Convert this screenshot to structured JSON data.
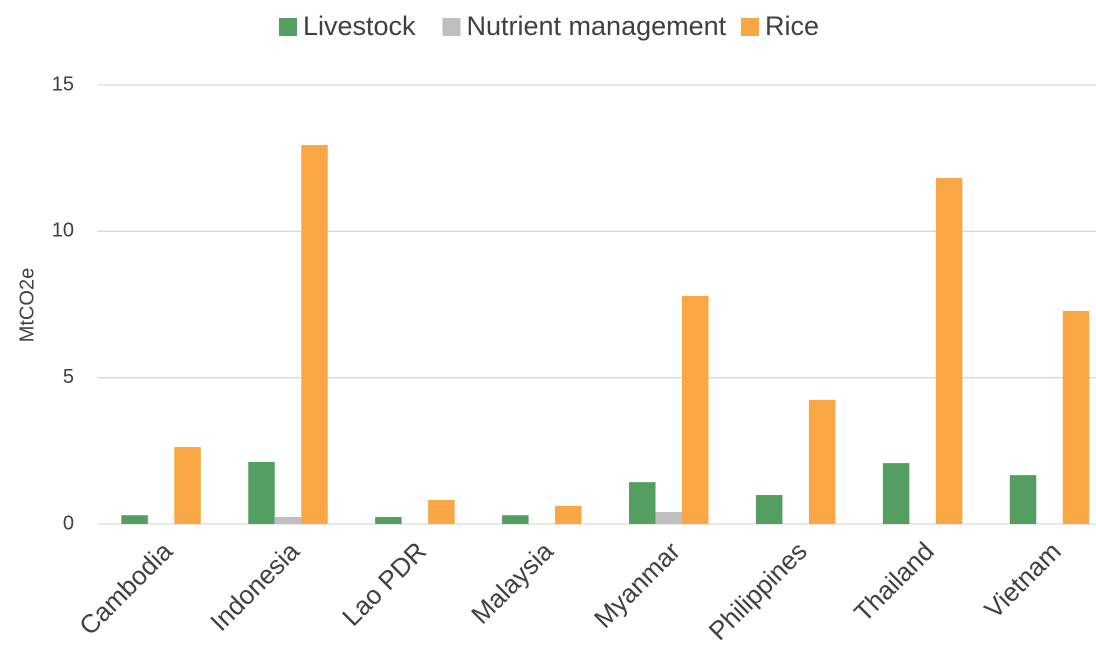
{
  "chart_data": {
    "type": "bar",
    "y_label": "MtCO2e",
    "categories": [
      "Cambodia",
      "Indonesia",
      "Lao PDR",
      "Malaysia",
      "Myanmar",
      "Philippines",
      "Thailand",
      "Vietnam"
    ],
    "series": [
      {
        "name": "Livestock",
        "color": "#559e62",
        "values": [
          0.3,
          2.12,
          0.24,
          0.3,
          1.43,
          0.99,
          2.08,
          1.67
        ]
      },
      {
        "name": "Nutrient management",
        "color": "#bfbfbf",
        "values": [
          0,
          0.24,
          0,
          0,
          0.41,
          0,
          0,
          0
        ]
      },
      {
        "name": "Rice",
        "color": "#f9a744",
        "values": [
          2.63,
          12.95,
          0.82,
          0.62,
          7.79,
          4.24,
          11.82,
          7.28
        ]
      }
    ],
    "ylim": [
      0,
      15
    ],
    "yticks": [
      0,
      5,
      10,
      15
    ],
    "grid": true,
    "legend": "top"
  }
}
